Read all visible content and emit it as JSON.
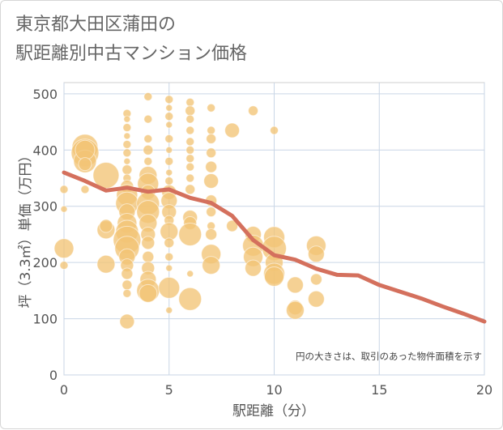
{
  "title": {
    "line1": "東京都大田区蒲田の",
    "line2": "駅距離別中古マンション価格"
  },
  "chart_data": {
    "type": "scatter",
    "xlabel": "駅距離（分）",
    "ylabel": "坪（3.3㎡）単価（万円）",
    "xlim": [
      0,
      20
    ],
    "ylim": [
      0,
      520
    ],
    "x_ticks": [
      "0",
      "5",
      "10",
      "15",
      "20"
    ],
    "y_ticks": [
      "0",
      "100",
      "200",
      "300",
      "400",
      "500"
    ],
    "grid": true,
    "note": "円の大きさは、取引のあった物件面積を示す",
    "bubble_color": "#f2c476",
    "line_color": "#d4705d",
    "trend_line": {
      "x": [
        0,
        1,
        2,
        3,
        4,
        5,
        6,
        7,
        8,
        9,
        10,
        11,
        12,
        13,
        14,
        15,
        16,
        17,
        18,
        19,
        20
      ],
      "y": [
        360,
        345,
        328,
        333,
        326,
        330,
        315,
        306,
        283,
        240,
        213,
        205,
        189,
        178,
        177,
        160,
        148,
        136,
        122,
        109,
        95
      ]
    },
    "bubbles": [
      {
        "x": 0,
        "y": 225,
        "r": 12
      },
      {
        "x": 0,
        "y": 330,
        "r": 5
      },
      {
        "x": 0,
        "y": 295,
        "r": 4
      },
      {
        "x": 0,
        "y": 195,
        "r": 5
      },
      {
        "x": 1,
        "y": 405,
        "r": 16
      },
      {
        "x": 1,
        "y": 395,
        "r": 17
      },
      {
        "x": 1,
        "y": 380,
        "r": 14
      },
      {
        "x": 1,
        "y": 400,
        "r": 12
      },
      {
        "x": 1,
        "y": 330,
        "r": 5
      },
      {
        "x": 1,
        "y": 375,
        "r": 8
      },
      {
        "x": 2,
        "y": 355,
        "r": 16
      },
      {
        "x": 2,
        "y": 258,
        "r": 11
      },
      {
        "x": 2,
        "y": 265,
        "r": 8
      },
      {
        "x": 2,
        "y": 197,
        "r": 11
      },
      {
        "x": 3,
        "y": 465,
        "r": 5
      },
      {
        "x": 3,
        "y": 455,
        "r": 4
      },
      {
        "x": 3,
        "y": 440,
        "r": 5
      },
      {
        "x": 3,
        "y": 425,
        "r": 4
      },
      {
        "x": 3,
        "y": 410,
        "r": 5
      },
      {
        "x": 3,
        "y": 395,
        "r": 5
      },
      {
        "x": 3,
        "y": 380,
        "r": 4
      },
      {
        "x": 3,
        "y": 365,
        "r": 6
      },
      {
        "x": 3,
        "y": 350,
        "r": 5
      },
      {
        "x": 3,
        "y": 335,
        "r": 8
      },
      {
        "x": 3,
        "y": 320,
        "r": 13
      },
      {
        "x": 3,
        "y": 305,
        "r": 14
      },
      {
        "x": 3,
        "y": 290,
        "r": 10
      },
      {
        "x": 3,
        "y": 270,
        "r": 12
      },
      {
        "x": 3,
        "y": 255,
        "r": 14
      },
      {
        "x": 3,
        "y": 240,
        "r": 17
      },
      {
        "x": 3,
        "y": 225,
        "r": 15
      },
      {
        "x": 3,
        "y": 210,
        "r": 10
      },
      {
        "x": 3,
        "y": 195,
        "r": 8
      },
      {
        "x": 3,
        "y": 180,
        "r": 7
      },
      {
        "x": 3,
        "y": 160,
        "r": 6
      },
      {
        "x": 3,
        "y": 145,
        "r": 5
      },
      {
        "x": 3,
        "y": 95,
        "r": 9
      },
      {
        "x": 4,
        "y": 495,
        "r": 5
      },
      {
        "x": 4,
        "y": 455,
        "r": 5
      },
      {
        "x": 4,
        "y": 420,
        "r": 5
      },
      {
        "x": 4,
        "y": 400,
        "r": 6
      },
      {
        "x": 4,
        "y": 380,
        "r": 5
      },
      {
        "x": 4,
        "y": 355,
        "r": 11
      },
      {
        "x": 4,
        "y": 340,
        "r": 13
      },
      {
        "x": 4,
        "y": 325,
        "r": 9
      },
      {
        "x": 4,
        "y": 305,
        "r": 14
      },
      {
        "x": 4,
        "y": 290,
        "r": 14
      },
      {
        "x": 4,
        "y": 270,
        "r": 11
      },
      {
        "x": 4,
        "y": 250,
        "r": 9
      },
      {
        "x": 4,
        "y": 235,
        "r": 8
      },
      {
        "x": 4,
        "y": 210,
        "r": 7
      },
      {
        "x": 4,
        "y": 190,
        "r": 8
      },
      {
        "x": 4,
        "y": 170,
        "r": 10
      },
      {
        "x": 4,
        "y": 150,
        "r": 14
      },
      {
        "x": 4,
        "y": 145,
        "r": 11
      },
      {
        "x": 5,
        "y": 490,
        "r": 5
      },
      {
        "x": 5,
        "y": 475,
        "r": 4
      },
      {
        "x": 5,
        "y": 460,
        "r": 5
      },
      {
        "x": 5,
        "y": 445,
        "r": 4
      },
      {
        "x": 5,
        "y": 420,
        "r": 5
      },
      {
        "x": 5,
        "y": 400,
        "r": 4
      },
      {
        "x": 5,
        "y": 380,
        "r": 5
      },
      {
        "x": 5,
        "y": 360,
        "r": 4
      },
      {
        "x": 5,
        "y": 345,
        "r": 5
      },
      {
        "x": 5,
        "y": 325,
        "r": 9
      },
      {
        "x": 5,
        "y": 310,
        "r": 10
      },
      {
        "x": 5,
        "y": 290,
        "r": 9
      },
      {
        "x": 5,
        "y": 275,
        "r": 6
      },
      {
        "x": 5,
        "y": 255,
        "r": 11
      },
      {
        "x": 5,
        "y": 235,
        "r": 6
      },
      {
        "x": 5,
        "y": 210,
        "r": 5
      },
      {
        "x": 5,
        "y": 190,
        "r": 4
      },
      {
        "x": 5,
        "y": 155,
        "r": 13
      },
      {
        "x": 5,
        "y": 115,
        "r": 4
      },
      {
        "x": 6,
        "y": 485,
        "r": 5
      },
      {
        "x": 6,
        "y": 470,
        "r": 6
      },
      {
        "x": 6,
        "y": 455,
        "r": 5
      },
      {
        "x": 6,
        "y": 435,
        "r": 5
      },
      {
        "x": 6,
        "y": 415,
        "r": 5
      },
      {
        "x": 6,
        "y": 400,
        "r": 5
      },
      {
        "x": 6,
        "y": 385,
        "r": 5
      },
      {
        "x": 6,
        "y": 370,
        "r": 5
      },
      {
        "x": 6,
        "y": 350,
        "r": 5
      },
      {
        "x": 6,
        "y": 330,
        "r": 6
      },
      {
        "x": 6,
        "y": 280,
        "r": 9
      },
      {
        "x": 6,
        "y": 270,
        "r": 8
      },
      {
        "x": 6,
        "y": 250,
        "r": 14
      },
      {
        "x": 6,
        "y": 180,
        "r": 4
      },
      {
        "x": 6,
        "y": 135,
        "r": 14
      },
      {
        "x": 7,
        "y": 475,
        "r": 5
      },
      {
        "x": 7,
        "y": 435,
        "r": 5
      },
      {
        "x": 7,
        "y": 420,
        "r": 6
      },
      {
        "x": 7,
        "y": 395,
        "r": 6
      },
      {
        "x": 7,
        "y": 370,
        "r": 7
      },
      {
        "x": 7,
        "y": 345,
        "r": 9
      },
      {
        "x": 7,
        "y": 310,
        "r": 7
      },
      {
        "x": 7,
        "y": 290,
        "r": 6
      },
      {
        "x": 7,
        "y": 265,
        "r": 5
      },
      {
        "x": 7,
        "y": 250,
        "r": 7
      },
      {
        "x": 7,
        "y": 215,
        "r": 12
      },
      {
        "x": 7,
        "y": 195,
        "r": 11
      },
      {
        "x": 8,
        "y": 435,
        "r": 9
      },
      {
        "x": 8,
        "y": 265,
        "r": 7
      },
      {
        "x": 9,
        "y": 470,
        "r": 6
      },
      {
        "x": 9,
        "y": 250,
        "r": 10
      },
      {
        "x": 9,
        "y": 230,
        "r": 13
      },
      {
        "x": 9,
        "y": 210,
        "r": 12
      },
      {
        "x": 9,
        "y": 190,
        "r": 10
      },
      {
        "x": 10,
        "y": 435,
        "r": 5
      },
      {
        "x": 10,
        "y": 245,
        "r": 13
      },
      {
        "x": 10,
        "y": 225,
        "r": 15
      },
      {
        "x": 10,
        "y": 200,
        "r": 11
      },
      {
        "x": 10,
        "y": 180,
        "r": 13
      },
      {
        "x": 10,
        "y": 175,
        "r": 12
      },
      {
        "x": 11,
        "y": 160,
        "r": 10
      },
      {
        "x": 11,
        "y": 120,
        "r": 9
      },
      {
        "x": 11,
        "y": 115,
        "r": 11
      },
      {
        "x": 12,
        "y": 230,
        "r": 12
      },
      {
        "x": 12,
        "y": 215,
        "r": 10
      },
      {
        "x": 12,
        "y": 170,
        "r": 7
      },
      {
        "x": 12,
        "y": 135,
        "r": 10
      }
    ]
  }
}
